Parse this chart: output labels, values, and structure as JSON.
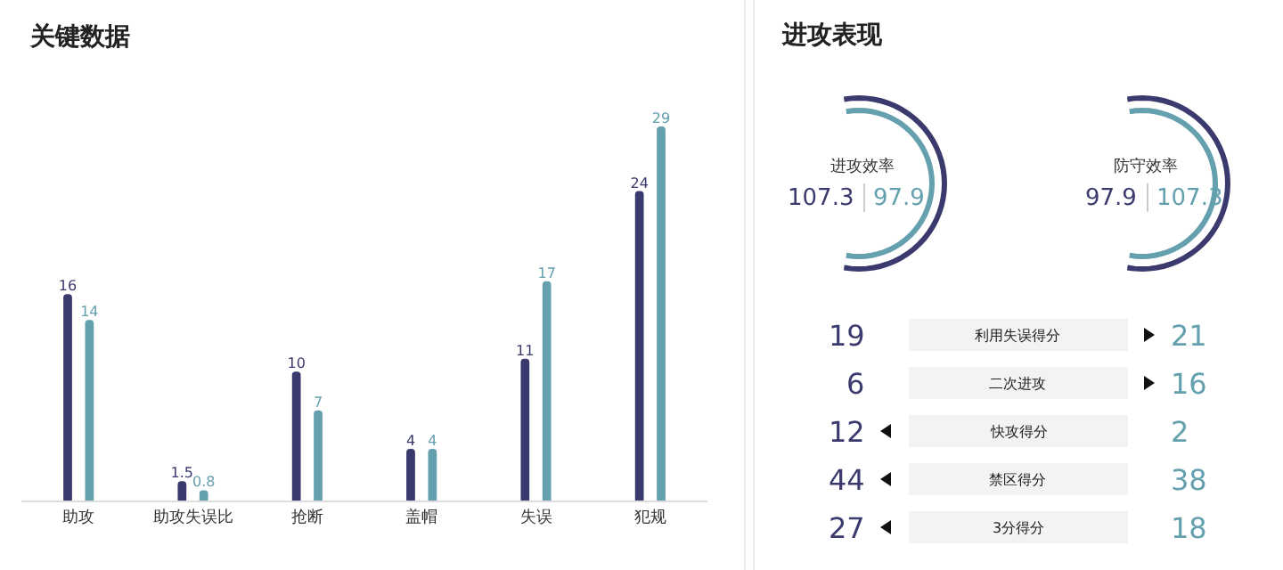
{
  "chart_data": [
    {
      "type": "bar",
      "title": "关键数据",
      "categories": [
        "助攻",
        "助攻失误比",
        "抢断",
        "盖帽",
        "失误",
        "犯规"
      ],
      "series": [
        {
          "color": "#3b3a6e",
          "values": [
            16,
            1.5,
            10,
            4,
            11,
            24
          ]
        },
        {
          "color": "#64a0ae",
          "values": [
            14,
            0.8,
            7,
            4,
            17,
            29
          ]
        }
      ],
      "data_labels": true,
      "tick_labels": "x"
    },
    {
      "type": "other",
      "title": "进攻表现",
      "categories": [
        "利用失误得分",
        "二次进攻",
        "快攻得分",
        "禁区得分",
        "3分得分"
      ],
      "series": [
        {
          "color": "#3b3a6e",
          "values": [
            19,
            6,
            12,
            44,
            27
          ],
          "value_labels": [
            "19",
            "6",
            "12",
            "44",
            "27"
          ]
        },
        {
          "color": "#64a0ae",
          "values": [
            21,
            16,
            2,
            38,
            18
          ],
          "value_labels": [
            "21",
            "16",
            "2",
            "38",
            "18"
          ]
        }
      ],
      "annotations": [
        "进攻效率",
        "107.3",
        "97.9",
        "防守效率",
        "97.9",
        "107.3"
      ]
    }
  ]
}
